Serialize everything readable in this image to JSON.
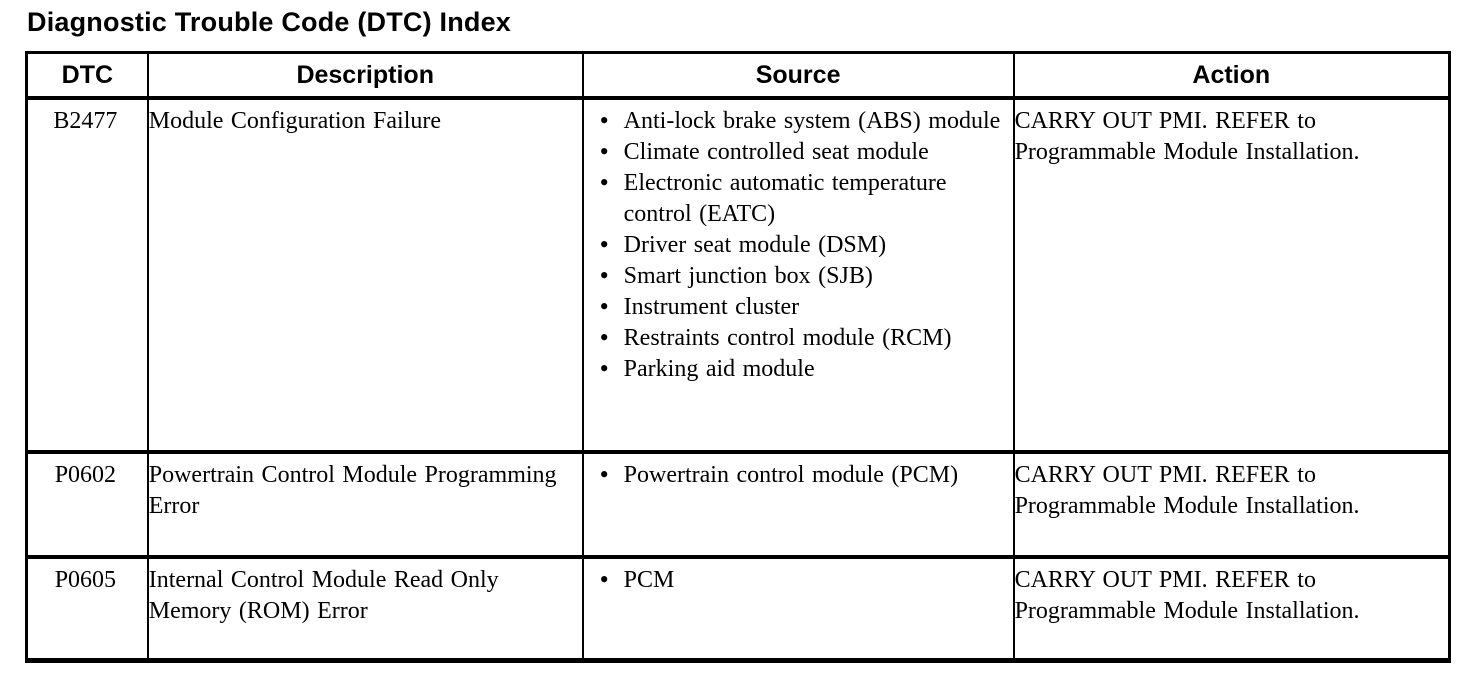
{
  "title": "Diagnostic Trouble Code (DTC) Index",
  "table": {
    "headers": {
      "dtc": "DTC",
      "description": "Description",
      "source": "Source",
      "action": "Action"
    },
    "rows": [
      {
        "dtc": "B2477",
        "description": "Module Configuration Failure",
        "source": [
          "Anti-lock brake system (ABS) module",
          "Climate controlled seat module",
          "Electronic automatic temperature control (EATC)",
          "Driver seat module (DSM)",
          "Smart junction box (SJB)",
          "Instrument cluster",
          "Restraints control module (RCM)",
          "Parking aid module"
        ],
        "action": "CARRY OUT PMI. REFER to Programmable Module Installation."
      },
      {
        "dtc": "P0602",
        "description": "Powertrain Control Module Programming Error",
        "source": [
          "Powertrain control module (PCM)"
        ],
        "action": "CARRY OUT PMI. REFER to Programmable Module Installation."
      },
      {
        "dtc": "P0605",
        "description": "Internal Control Module Read Only Memory (ROM) Error",
        "source": [
          "PCM"
        ],
        "action": "CARRY OUT PMI. REFER to Programmable Module Installation."
      }
    ]
  }
}
